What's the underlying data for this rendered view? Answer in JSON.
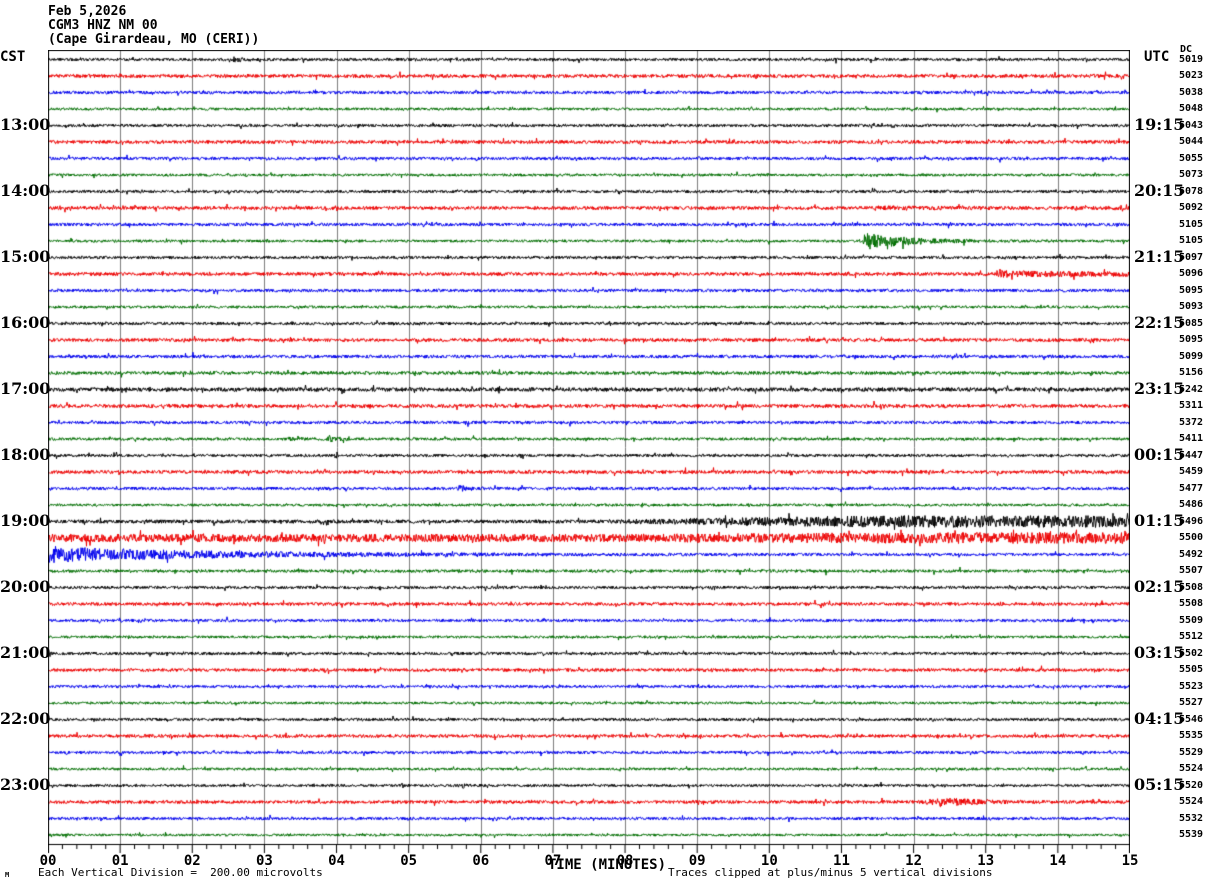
{
  "header": {
    "date": "Feb 5,2026",
    "station": "CGM3 HNZ NM 00",
    "location": "(Cape Girardeau, MO (CERI))"
  },
  "axes": {
    "left_timezone": "CST",
    "right_timezone": "UTC",
    "dc_header": "DC",
    "x_title": "TIME (MINUTES)",
    "x_ticks": [
      "00",
      "01",
      "02",
      "03",
      "04",
      "05",
      "06",
      "07",
      "08",
      "09",
      "10",
      "11",
      "12",
      "13",
      "14",
      "15"
    ]
  },
  "footer": {
    "scale_note": "Each Vertical Division =  200.00 microvolts",
    "clip_note": "Traces clipped at plus/minus 5 vertical divisions",
    "watermark": "M"
  },
  "colors": {
    "black": "#000000",
    "red": "#ee0000",
    "blue": "#0000ee",
    "green": "#006e00",
    "grid": "#7d7d7d",
    "border": "#000000",
    "background": "#ffffff"
  },
  "chart_data": {
    "type": "line",
    "subtype": "helicorder-seismogram",
    "title": "CGM3 HNZ NM 00 (Cape Girardeau, MO (CERI)) Feb 5,2026",
    "xlabel": "TIME (MINUTES)",
    "x_range_minutes": [
      0,
      15
    ],
    "minutes_per_line": 15,
    "grid": "vertical-every-minute",
    "y_scale": {
      "division_microvolts": 200.0,
      "clip_divisions": 5
    },
    "rows": [
      {
        "dc": 5019,
        "color": "k",
        "cst": "",
        "utc": "",
        "noise": 1.4,
        "events": [
          {
            "t": 2.55,
            "peak": 2.5,
            "decay": 0.1
          }
        ]
      },
      {
        "dc": 5023,
        "color": "r",
        "cst": "",
        "utc": "",
        "noise": 1.7,
        "events": []
      },
      {
        "dc": 5038,
        "color": "b",
        "cst": "",
        "utc": "",
        "noise": 1.5,
        "events": []
      },
      {
        "dc": 5048,
        "color": "g",
        "cst": "",
        "utc": "",
        "noise": 1.3,
        "events": []
      },
      {
        "dc": 5043,
        "color": "k",
        "cst": "13:00",
        "utc": "19:15",
        "noise": 1.4,
        "events": []
      },
      {
        "dc": 5044,
        "color": "r",
        "cst": "",
        "utc": "",
        "noise": 1.7,
        "events": []
      },
      {
        "dc": 5055,
        "color": "b",
        "cst": "",
        "utc": "",
        "noise": 1.5,
        "events": []
      },
      {
        "dc": 5073,
        "color": "g",
        "cst": "",
        "utc": "",
        "noise": 1.3,
        "events": []
      },
      {
        "dc": 5078,
        "color": "k",
        "cst": "14:00",
        "utc": "20:15",
        "noise": 1.4,
        "events": []
      },
      {
        "dc": 5092,
        "color": "r",
        "cst": "",
        "utc": "",
        "noise": 1.7,
        "events": [
          {
            "t": 11.4,
            "peak": 0.8,
            "decay": 1.5
          }
        ]
      },
      {
        "dc": 5105,
        "color": "b",
        "cst": "",
        "utc": "",
        "noise": 1.5,
        "events": []
      },
      {
        "dc": 5105,
        "color": "g",
        "cst": "",
        "utc": "",
        "noise": 1.3,
        "events": [
          {
            "t": 11.28,
            "peak": 8,
            "decay": 0.55,
            "rise": 0.06
          }
        ]
      },
      {
        "dc": 5097,
        "color": "k",
        "cst": "15:00",
        "utc": "21:15",
        "noise": 1.4,
        "events": []
      },
      {
        "dc": 5096,
        "color": "r",
        "cst": "",
        "utc": "",
        "noise": 1.7,
        "events": [
          {
            "t": 13.1,
            "peak": 2,
            "decay": 2
          }
        ]
      },
      {
        "dc": 5095,
        "color": "b",
        "cst": "",
        "utc": "",
        "noise": 1.5,
        "events": []
      },
      {
        "dc": 5093,
        "color": "g",
        "cst": "",
        "utc": "",
        "noise": 1.3,
        "events": []
      },
      {
        "dc": 5085,
        "color": "k",
        "cst": "16:00",
        "utc": "22:15",
        "noise": 1.4,
        "events": []
      },
      {
        "dc": 5095,
        "color": "r",
        "cst": "",
        "utc": "",
        "noise": 1.7,
        "events": []
      },
      {
        "dc": 5099,
        "color": "b",
        "cst": "",
        "utc": "",
        "noise": 1.6,
        "events": []
      },
      {
        "dc": 5156,
        "color": "g",
        "cst": "",
        "utc": "",
        "noise": 1.7,
        "events": []
      },
      {
        "dc": 5242,
        "color": "k",
        "cst": "17:00",
        "utc": "23:15",
        "noise": 2.0,
        "events": []
      },
      {
        "dc": 5311,
        "color": "r",
        "cst": "",
        "utc": "",
        "noise": 1.8,
        "events": []
      },
      {
        "dc": 5372,
        "color": "b",
        "cst": "",
        "utc": "",
        "noise": 1.5,
        "events": []
      },
      {
        "dc": 5411,
        "color": "g",
        "cst": "",
        "utc": "",
        "noise": 1.4,
        "events": [
          {
            "t": 3.3,
            "peak": 1.5,
            "decay": 0.1
          },
          {
            "t": 3.85,
            "peak": 2.5,
            "decay": 0.12
          }
        ]
      },
      {
        "dc": 5447,
        "color": "k",
        "cst": "18:00",
        "utc": "00:15",
        "noise": 1.4,
        "events": []
      },
      {
        "dc": 5459,
        "color": "r",
        "cst": "",
        "utc": "",
        "noise": 1.7,
        "events": []
      },
      {
        "dc": 5477,
        "color": "b",
        "cst": "",
        "utc": "",
        "noise": 1.5,
        "events": [
          {
            "t": 5.65,
            "peak": 2.5,
            "decay": 0.12
          }
        ]
      },
      {
        "dc": 5486,
        "color": "g",
        "cst": "",
        "utc": "",
        "noise": 1.3,
        "events": []
      },
      {
        "dc": 5496,
        "color": "k",
        "cst": "19:00",
        "utc": "01:15",
        "noise": 1.8,
        "events": [
          {
            "ramp": true,
            "t0": 7.5,
            "t1": 11.5,
            "peak": 4.2
          }
        ]
      },
      {
        "dc": 5500,
        "color": "r",
        "cst": "",
        "utc": "",
        "noise": 4.0,
        "events": [
          {
            "ramp": true,
            "t0": 8,
            "t1": 12,
            "peak": 1.6
          }
        ]
      },
      {
        "dc": 5492,
        "color": "b",
        "cst": "",
        "utc": "",
        "noise": 1.4,
        "events": [
          {
            "t": 0,
            "peak": 7,
            "decay": 2.2,
            "rise": 0.01
          }
        ]
      },
      {
        "dc": 5507,
        "color": "g",
        "cst": "",
        "utc": "",
        "noise": 1.5,
        "events": []
      },
      {
        "dc": 5508,
        "color": "k",
        "cst": "20:00",
        "utc": "02:15",
        "noise": 1.4,
        "events": []
      },
      {
        "dc": 5508,
        "color": "r",
        "cst": "",
        "utc": "",
        "noise": 1.6,
        "events": []
      },
      {
        "dc": 5509,
        "color": "b",
        "cst": "",
        "utc": "",
        "noise": 1.4,
        "events": []
      },
      {
        "dc": 5512,
        "color": "g",
        "cst": "",
        "utc": "",
        "noise": 1.3,
        "events": []
      },
      {
        "dc": 5502,
        "color": "k",
        "cst": "21:00",
        "utc": "03:15",
        "noise": 1.4,
        "events": []
      },
      {
        "dc": 5505,
        "color": "r",
        "cst": "",
        "utc": "",
        "noise": 1.6,
        "events": []
      },
      {
        "dc": 5523,
        "color": "b",
        "cst": "",
        "utc": "",
        "noise": 1.4,
        "events": []
      },
      {
        "dc": 5527,
        "color": "g",
        "cst": "",
        "utc": "",
        "noise": 1.3,
        "events": []
      },
      {
        "dc": 5546,
        "color": "k",
        "cst": "22:00",
        "utc": "04:15",
        "noise": 1.4,
        "events": []
      },
      {
        "dc": 5535,
        "color": "r",
        "cst": "",
        "utc": "",
        "noise": 1.6,
        "events": []
      },
      {
        "dc": 5529,
        "color": "b",
        "cst": "",
        "utc": "",
        "noise": 1.4,
        "events": []
      },
      {
        "dc": 5524,
        "color": "g",
        "cst": "",
        "utc": "",
        "noise": 1.3,
        "events": []
      },
      {
        "dc": 5520,
        "color": "k",
        "cst": "23:00",
        "utc": "05:15",
        "noise": 1.3,
        "events": [
          {
            "t": 5.7,
            "peak": 2,
            "decay": 0.08
          }
        ]
      },
      {
        "dc": 5524,
        "color": "r",
        "cst": "",
        "utc": "",
        "noise": 1.6,
        "events": [
          {
            "t": 12.1,
            "peak": 3.5,
            "decay": 0.45,
            "rise": 0.3
          }
        ]
      },
      {
        "dc": 5532,
        "color": "b",
        "cst": "",
        "utc": "",
        "noise": 1.4,
        "events": []
      },
      {
        "dc": 5539,
        "color": "g",
        "cst": "",
        "utc": "",
        "noise": 1.2,
        "events": []
      }
    ]
  }
}
